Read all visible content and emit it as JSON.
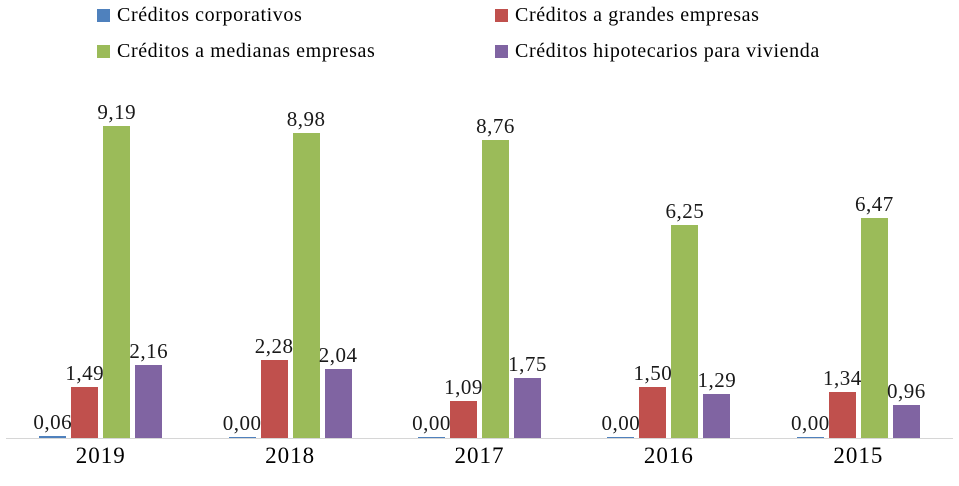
{
  "chart_data": {
    "type": "bar",
    "title": "",
    "categories": [
      "2019",
      "2018",
      "2017",
      "2016",
      "2015"
    ],
    "series": [
      {
        "name": "Créditos corporativos",
        "color": "#4f81bd",
        "values": [
          0.06,
          0.0,
          0.0,
          0.0,
          0.0
        ],
        "labels": [
          "0,06",
          "0,00",
          "0,00",
          "0,00",
          "0,00"
        ]
      },
      {
        "name": "Créditos a grandes empresas",
        "color": "#c0504d",
        "values": [
          1.49,
          2.28,
          1.09,
          1.5,
          1.34
        ],
        "labels": [
          "1,49",
          "2,28",
          "1,09",
          "1,50",
          "1,34"
        ]
      },
      {
        "name": "Créditos a medianas empresas",
        "color": "#9bbb59",
        "values": [
          9.19,
          8.98,
          8.76,
          6.25,
          6.47
        ],
        "labels": [
          "9,19",
          "8,98",
          "8,76",
          "6,25",
          "6,47"
        ]
      },
      {
        "name": "Créditos hipotecarios para vivienda",
        "color": "#8064a2",
        "values": [
          2.16,
          2.04,
          1.75,
          1.29,
          0.96
        ],
        "labels": [
          "2,16",
          "2,04",
          "1,75",
          "1,29",
          "0,96"
        ]
      }
    ],
    "ylim": [
      0,
      10
    ],
    "grid": false,
    "legend_position": "top",
    "axis_color": "#d6d6d6",
    "label_color": "#1a1a1a"
  }
}
